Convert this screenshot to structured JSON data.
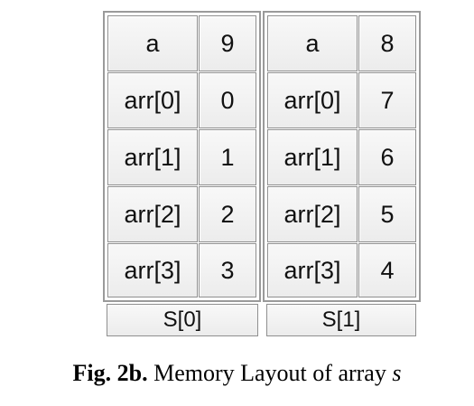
{
  "structs": [
    {
      "label": "S[0]",
      "rows": [
        {
          "name": "a",
          "value": "9"
        },
        {
          "name": "arr[0]",
          "value": "0"
        },
        {
          "name": "arr[1]",
          "value": "1"
        },
        {
          "name": "arr[2]",
          "value": "2"
        },
        {
          "name": "arr[3]",
          "value": "3"
        }
      ]
    },
    {
      "label": "S[1]",
      "rows": [
        {
          "name": "a",
          "value": "8"
        },
        {
          "name": "arr[0]",
          "value": "7"
        },
        {
          "name": "arr[1]",
          "value": "6"
        },
        {
          "name": "arr[2]",
          "value": "5"
        },
        {
          "name": "arr[3]",
          "value": "4"
        }
      ]
    }
  ],
  "caption": {
    "prefix": "Fig. 2b.",
    "text": " Memory Layout of array ",
    "var": "s"
  }
}
